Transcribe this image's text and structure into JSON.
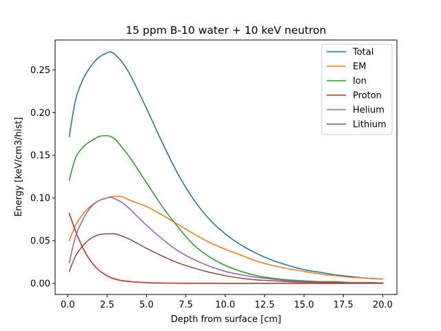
{
  "chart_data": {
    "type": "line",
    "title": "15 ppm B-10 water + 10 keV neutron",
    "xlabel": "Depth from surface [cm]",
    "ylabel": "Energy [keV/cm3/hist]",
    "xlim": [
      -0.8,
      20.9
    ],
    "ylim": [
      -0.013,
      0.285
    ],
    "xticks": [
      0.0,
      2.5,
      5.0,
      7.5,
      10.0,
      12.5,
      15.0,
      17.5,
      20.0
    ],
    "xtick_labels": [
      "0.0",
      "2.5",
      "5.0",
      "7.5",
      "10.0",
      "12.5",
      "15.0",
      "17.5",
      "20.0"
    ],
    "yticks": [
      0.0,
      0.05,
      0.1,
      0.15,
      0.2,
      0.25
    ],
    "ytick_labels": [
      "0.00",
      "0.05",
      "0.10",
      "0.15",
      "0.20",
      "0.25"
    ],
    "grid": false,
    "legend_position": "top-right",
    "x": [
      0.1,
      0.5,
      1.0,
      1.5,
      2.0,
      2.5,
      2.7,
      3.0,
      3.5,
      4.0,
      5.0,
      6.0,
      7.0,
      8.0,
      9.0,
      10.0,
      11.0,
      12.0,
      13.0,
      14.0,
      15.0,
      16.0,
      17.0,
      18.0,
      19.0,
      20.0
    ],
    "series": [
      {
        "name": "Total",
        "color": "#1f77b4",
        "values": [
          0.172,
          0.215,
          0.24,
          0.255,
          0.265,
          0.27,
          0.271,
          0.268,
          0.258,
          0.243,
          0.205,
          0.165,
          0.128,
          0.098,
          0.075,
          0.058,
          0.045,
          0.035,
          0.027,
          0.021,
          0.016,
          0.013,
          0.01,
          0.008,
          0.006,
          0.005
        ]
      },
      {
        "name": "EM",
        "color": "#ff7f0e",
        "values": [
          0.05,
          0.068,
          0.082,
          0.091,
          0.097,
          0.1,
          0.101,
          0.102,
          0.101,
          0.097,
          0.09,
          0.08,
          0.069,
          0.058,
          0.048,
          0.04,
          0.033,
          0.026,
          0.021,
          0.017,
          0.014,
          0.011,
          0.009,
          0.007,
          0.006,
          0.005
        ]
      },
      {
        "name": "Ion",
        "color": "#2ca02c",
        "values": [
          0.121,
          0.147,
          0.16,
          0.167,
          0.172,
          0.173,
          0.172,
          0.169,
          0.158,
          0.146,
          0.118,
          0.09,
          0.066,
          0.045,
          0.031,
          0.021,
          0.014,
          0.009,
          0.006,
          0.004,
          0.003,
          0.002,
          0.002,
          0.001,
          0.001,
          0.0005
        ]
      },
      {
        "name": "Proton",
        "color": "#d62728",
        "values": [
          0.082,
          0.061,
          0.04,
          0.025,
          0.015,
          0.009,
          0.007,
          0.005,
          0.003,
          0.002,
          0.0008,
          0.0004,
          0.0002,
          0.0001,
          0.0001,
          0.0,
          0.0,
          0.0,
          0.0,
          0.0,
          0.0,
          0.0,
          0.0,
          0.0,
          0.0,
          0.0
        ]
      },
      {
        "name": "Helium",
        "color": "#9467bd",
        "values": [
          0.024,
          0.055,
          0.076,
          0.09,
          0.097,
          0.1,
          0.101,
          0.099,
          0.094,
          0.086,
          0.068,
          0.052,
          0.038,
          0.028,
          0.02,
          0.014,
          0.01,
          0.007,
          0.005,
          0.003,
          0.002,
          0.0015,
          0.001,
          0.0008,
          0.0006,
          0.0004
        ]
      },
      {
        "name": "Lithium",
        "color": "#8c564b",
        "values": [
          0.014,
          0.032,
          0.045,
          0.053,
          0.057,
          0.058,
          0.058,
          0.058,
          0.055,
          0.051,
          0.041,
          0.032,
          0.024,
          0.018,
          0.013,
          0.009,
          0.006,
          0.004,
          0.003,
          0.002,
          0.0015,
          0.001,
          0.0008,
          0.0006,
          0.0004,
          0.0003
        ]
      }
    ]
  }
}
